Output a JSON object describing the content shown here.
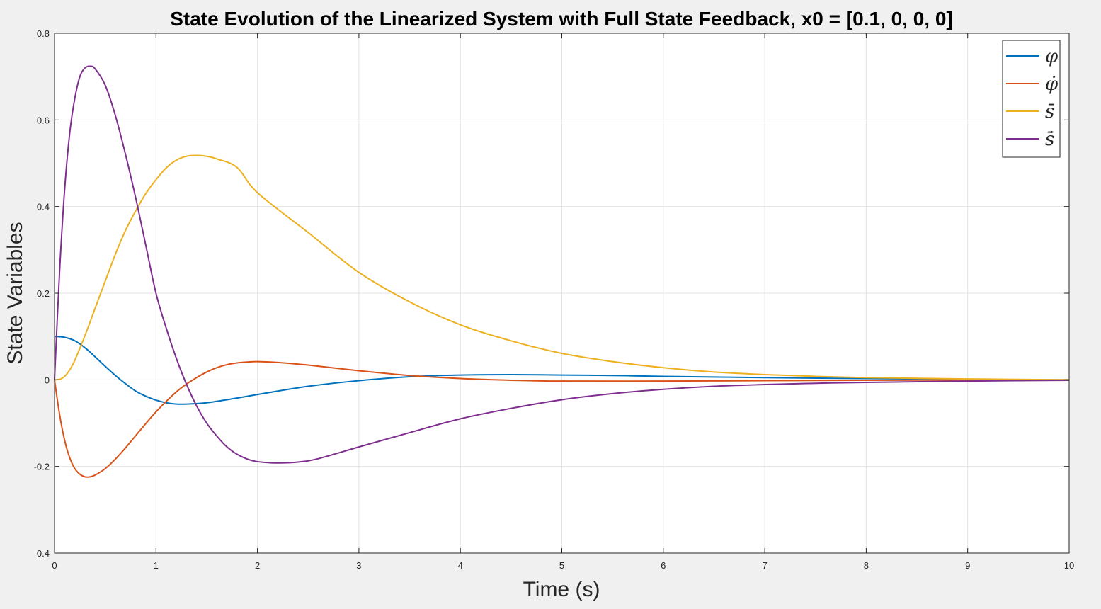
{
  "chart_data": {
    "type": "line",
    "title": "State Evolution of the Linearized System with Full State Feedback, x0 = [0.1, 0, 0, 0]",
    "xlabel": "Time (s)",
    "ylabel": "State Variables",
    "xlim": [
      0,
      10
    ],
    "ylim": [
      -0.4,
      0.8
    ],
    "xticks": [
      0,
      1,
      2,
      3,
      4,
      5,
      6,
      7,
      8,
      9,
      10
    ],
    "yticks": [
      -0.4,
      -0.2,
      0,
      0.2,
      0.4,
      0.6,
      0.8
    ],
    "xtick_labels": [
      "0",
      "1",
      "2",
      "3",
      "4",
      "5",
      "6",
      "7",
      "8",
      "9",
      "10"
    ],
    "ytick_labels": [
      "-0.4",
      "-0.2",
      "0",
      "0.2",
      "0.4",
      "0.6",
      "0.8"
    ],
    "grid": true,
    "legend_position": "top-right",
    "series": [
      {
        "name": "φ",
        "color": "#0072BD",
        "points": [
          [
            0,
            0.1
          ],
          [
            0.1,
            0.098
          ],
          [
            0.2,
            0.09
          ],
          [
            0.3,
            0.074
          ],
          [
            0.4,
            0.053
          ],
          [
            0.5,
            0.031
          ],
          [
            0.6,
            0.01
          ],
          [
            0.7,
            -0.009
          ],
          [
            0.8,
            -0.026
          ],
          [
            0.9,
            -0.038
          ],
          [
            1.0,
            -0.047
          ],
          [
            1.1,
            -0.053
          ],
          [
            1.2,
            -0.056
          ],
          [
            1.3,
            -0.056
          ],
          [
            1.5,
            -0.053
          ],
          [
            1.75,
            -0.044
          ],
          [
            2.0,
            -0.034
          ],
          [
            2.5,
            -0.015
          ],
          [
            3.0,
            -0.002
          ],
          [
            3.5,
            0.007
          ],
          [
            4.0,
            0.011
          ],
          [
            4.5,
            0.012
          ],
          [
            5.0,
            0.011
          ],
          [
            5.5,
            0.01
          ],
          [
            6.0,
            0.008
          ],
          [
            7.0,
            0.005
          ],
          [
            8.0,
            0.003
          ],
          [
            9.0,
            0.001
          ],
          [
            10.0,
            0.0
          ]
        ]
      },
      {
        "name": "φ̇",
        "color": "#D95319",
        "points": [
          [
            0,
            0.0
          ],
          [
            0.05,
            -0.08
          ],
          [
            0.1,
            -0.14
          ],
          [
            0.15,
            -0.18
          ],
          [
            0.2,
            -0.205
          ],
          [
            0.25,
            -0.218
          ],
          [
            0.3,
            -0.224
          ],
          [
            0.35,
            -0.224
          ],
          [
            0.4,
            -0.22
          ],
          [
            0.5,
            -0.205
          ],
          [
            0.6,
            -0.183
          ],
          [
            0.7,
            -0.157
          ],
          [
            0.8,
            -0.129
          ],
          [
            0.9,
            -0.101
          ],
          [
            1.0,
            -0.074
          ],
          [
            1.1,
            -0.05
          ],
          [
            1.2,
            -0.028
          ],
          [
            1.3,
            -0.01
          ],
          [
            1.4,
            0.005
          ],
          [
            1.5,
            0.018
          ],
          [
            1.6,
            0.028
          ],
          [
            1.7,
            0.035
          ],
          [
            1.8,
            0.039
          ],
          [
            1.9,
            0.041
          ],
          [
            2.0,
            0.042
          ],
          [
            2.2,
            0.04
          ],
          [
            2.5,
            0.034
          ],
          [
            3.0,
            0.021
          ],
          [
            3.5,
            0.01
          ],
          [
            4.0,
            0.003
          ],
          [
            4.5,
            -0.001
          ],
          [
            5.0,
            -0.003
          ],
          [
            6.0,
            -0.003
          ],
          [
            7.0,
            -0.002
          ],
          [
            8.0,
            -0.001
          ],
          [
            10.0,
            0.0
          ]
        ]
      },
      {
        "name": "s̄",
        "color": "#EDB120",
        "points": [
          [
            0,
            0.0
          ],
          [
            0.05,
            0.001
          ],
          [
            0.1,
            0.008
          ],
          [
            0.15,
            0.023
          ],
          [
            0.2,
            0.045
          ],
          [
            0.3,
            0.102
          ],
          [
            0.4,
            0.165
          ],
          [
            0.5,
            0.228
          ],
          [
            0.6,
            0.29
          ],
          [
            0.7,
            0.345
          ],
          [
            0.8,
            0.39
          ],
          [
            0.9,
            0.43
          ],
          [
            1.0,
            0.462
          ],
          [
            1.1,
            0.489
          ],
          [
            1.2,
            0.507
          ],
          [
            1.3,
            0.516
          ],
          [
            1.4,
            0.518
          ],
          [
            1.5,
            0.516
          ],
          [
            1.6,
            0.51
          ],
          [
            1.8,
            0.49
          ],
          [
            2.0,
            0.432
          ],
          [
            2.5,
            0.34
          ],
          [
            3.0,
            0.248
          ],
          [
            3.5,
            0.18
          ],
          [
            4.0,
            0.127
          ],
          [
            4.5,
            0.09
          ],
          [
            5.0,
            0.061
          ],
          [
            5.5,
            0.042
          ],
          [
            6.0,
            0.028
          ],
          [
            6.5,
            0.018
          ],
          [
            7.0,
            0.012
          ],
          [
            7.5,
            0.008
          ],
          [
            8.0,
            0.005
          ],
          [
            9.0,
            0.002
          ],
          [
            10.0,
            0.0
          ]
        ]
      },
      {
        "name": "ṡ̄",
        "color": "#7E2F8E",
        "points": [
          [
            0,
            0.0
          ],
          [
            0.05,
            0.25
          ],
          [
            0.1,
            0.44
          ],
          [
            0.15,
            0.57
          ],
          [
            0.2,
            0.65
          ],
          [
            0.25,
            0.7
          ],
          [
            0.3,
            0.72
          ],
          [
            0.35,
            0.724
          ],
          [
            0.4,
            0.718
          ],
          [
            0.5,
            0.68
          ],
          [
            0.6,
            0.61
          ],
          [
            0.7,
            0.52
          ],
          [
            0.8,
            0.42
          ],
          [
            0.9,
            0.31
          ],
          [
            1.0,
            0.2
          ],
          [
            1.1,
            0.12
          ],
          [
            1.2,
            0.05
          ],
          [
            1.3,
            -0.01
          ],
          [
            1.4,
            -0.06
          ],
          [
            1.5,
            -0.1
          ],
          [
            1.6,
            -0.13
          ],
          [
            1.7,
            -0.155
          ],
          [
            1.8,
            -0.172
          ],
          [
            1.9,
            -0.183
          ],
          [
            2.0,
            -0.189
          ],
          [
            2.2,
            -0.192
          ],
          [
            2.4,
            -0.19
          ],
          [
            2.6,
            -0.182
          ],
          [
            3.0,
            -0.155
          ],
          [
            3.5,
            -0.122
          ],
          [
            4.0,
            -0.09
          ],
          [
            4.5,
            -0.066
          ],
          [
            5.0,
            -0.046
          ],
          [
            5.5,
            -0.032
          ],
          [
            6.0,
            -0.022
          ],
          [
            6.5,
            -0.015
          ],
          [
            7.0,
            -0.011
          ],
          [
            7.5,
            -0.008
          ],
          [
            8.0,
            -0.006
          ],
          [
            9.0,
            -0.003
          ],
          [
            10.0,
            -0.001
          ]
        ]
      }
    ]
  }
}
